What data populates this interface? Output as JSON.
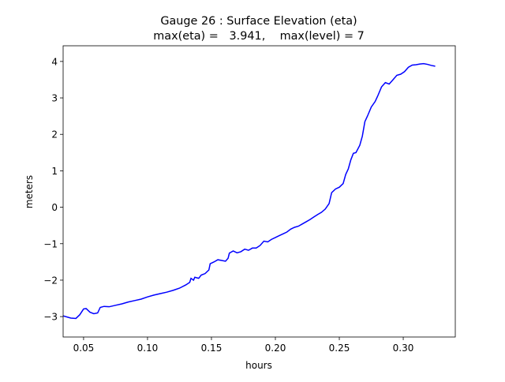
{
  "chart_data": {
    "type": "line",
    "title": "Gauge 26 : Surface Elevation (eta)",
    "subtitle": "max(eta) =   3.941,    max(level) = 7",
    "x_label": "hours",
    "y_label": "meters",
    "xlim": [
      0.034,
      0.3407
    ],
    "ylim": [
      -3.56,
      4.43
    ],
    "xticks": [
      {
        "value": 0.05,
        "label": "0.05"
      },
      {
        "value": 0.1,
        "label": "0.10"
      },
      {
        "value": 0.15,
        "label": "0.15"
      },
      {
        "value": 0.2,
        "label": "0.20"
      },
      {
        "value": 0.25,
        "label": "0.25"
      },
      {
        "value": 0.3,
        "label": "0.30"
      }
    ],
    "yticks": [
      {
        "value": -3,
        "label": "−3"
      },
      {
        "value": -2,
        "label": "−2"
      },
      {
        "value": -1,
        "label": "−1"
      },
      0,
      1,
      2,
      3,
      4
    ],
    "grid": false,
    "series": [
      {
        "name": "eta",
        "color": "#0000ff",
        "x": [
          0.034,
          0.04,
          0.044,
          0.047,
          0.05,
          0.052,
          0.055,
          0.058,
          0.061,
          0.063,
          0.066,
          0.07,
          0.075,
          0.08,
          0.085,
          0.09,
          0.095,
          0.1,
          0.105,
          0.11,
          0.115,
          0.12,
          0.125,
          0.13,
          0.133,
          0.134,
          0.136,
          0.137,
          0.14,
          0.142,
          0.145,
          0.148,
          0.149,
          0.152,
          0.155,
          0.158,
          0.161,
          0.163,
          0.164,
          0.167,
          0.17,
          0.173,
          0.176,
          0.179,
          0.182,
          0.185,
          0.188,
          0.191,
          0.194,
          0.197,
          0.2,
          0.203,
          0.206,
          0.209,
          0.212,
          0.215,
          0.218,
          0.221,
          0.224,
          0.227,
          0.23,
          0.233,
          0.236,
          0.239,
          0.242,
          0.244,
          0.247,
          0.25,
          0.253,
          0.255,
          0.257,
          0.259,
          0.261,
          0.263,
          0.266,
          0.268,
          0.27,
          0.272,
          0.275,
          0.278,
          0.28,
          0.283,
          0.286,
          0.289,
          0.292,
          0.295,
          0.298,
          0.301,
          0.304,
          0.307,
          0.31,
          0.313,
          0.316,
          0.319,
          0.322,
          0.325
        ],
        "values": [
          -2.98,
          -3.04,
          -3.05,
          -2.95,
          -2.79,
          -2.78,
          -2.88,
          -2.92,
          -2.9,
          -2.75,
          -2.72,
          -2.73,
          -2.69,
          -2.65,
          -2.6,
          -2.56,
          -2.52,
          -2.46,
          -2.41,
          -2.37,
          -2.33,
          -2.28,
          -2.22,
          -2.13,
          -2.06,
          -1.95,
          -2.0,
          -1.92,
          -1.95,
          -1.86,
          -1.82,
          -1.72,
          -1.55,
          -1.5,
          -1.44,
          -1.46,
          -1.48,
          -1.4,
          -1.26,
          -1.2,
          -1.25,
          -1.22,
          -1.15,
          -1.18,
          -1.12,
          -1.12,
          -1.05,
          -0.93,
          -0.95,
          -0.88,
          -0.83,
          -0.78,
          -0.73,
          -0.68,
          -0.6,
          -0.55,
          -0.52,
          -0.46,
          -0.4,
          -0.34,
          -0.27,
          -0.2,
          -0.14,
          -0.05,
          0.1,
          0.4,
          0.5,
          0.55,
          0.65,
          0.9,
          1.05,
          1.3,
          1.48,
          1.5,
          1.7,
          1.95,
          2.35,
          2.5,
          2.75,
          2.9,
          3.05,
          3.3,
          3.42,
          3.38,
          3.5,
          3.62,
          3.65,
          3.72,
          3.84,
          3.9,
          3.91,
          3.93,
          3.94,
          3.92,
          3.89,
          3.87
        ]
      }
    ]
  }
}
